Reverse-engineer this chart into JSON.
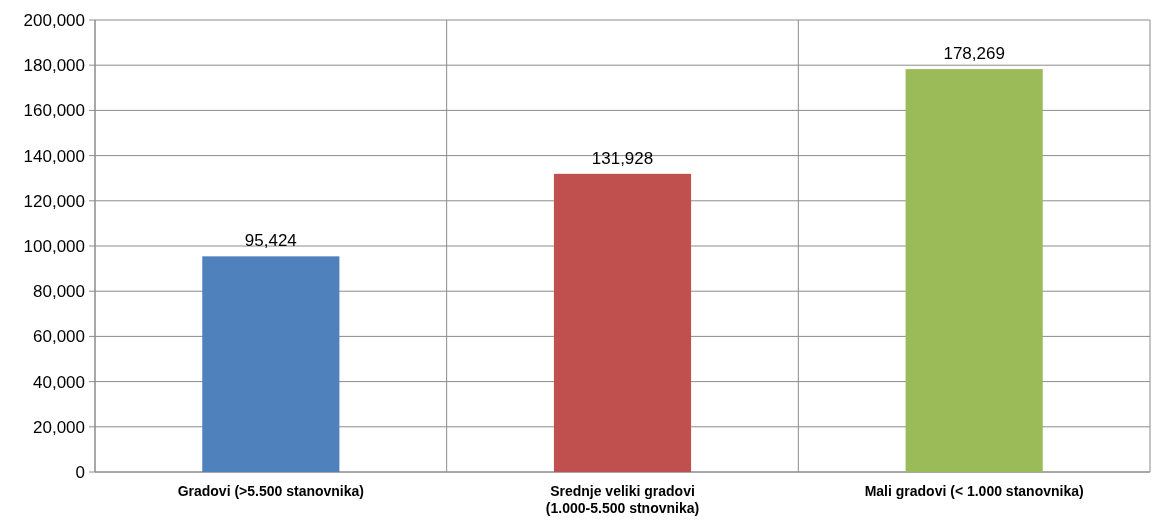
{
  "chart_data": {
    "type": "bar",
    "categories": [
      "Gradovi (>5.500 stanovnika)",
      "Srednje veliki gradovi\n(1.000-5.500 stnovnika)",
      "Mali gradovi (< 1.000 stanovnika)"
    ],
    "values": [
      95424,
      131928,
      178269
    ],
    "colors": [
      "#4f81bd",
      "#c0504d",
      "#9bbb59"
    ],
    "ylim": [
      0,
      200000
    ],
    "yticks": [
      {
        "value": 0,
        "label": "0"
      },
      {
        "value": 20000,
        "label": "20,000"
      },
      {
        "value": 40000,
        "label": "40,000"
      },
      {
        "value": 60000,
        "label": "60,000"
      },
      {
        "value": 80000,
        "label": "80,000"
      },
      {
        "value": 100000,
        "label": "100,000"
      },
      {
        "value": 120000,
        "label": "120,000"
      },
      {
        "value": 140000,
        "label": "140,000"
      },
      {
        "value": 160000,
        "label": "160,000"
      },
      {
        "value": 180000,
        "label": "180,000"
      },
      {
        "value": 200000,
        "label": "200,000"
      }
    ],
    "value_labels": [
      "95,424",
      "131,928",
      "178,269"
    ],
    "grid": true
  }
}
